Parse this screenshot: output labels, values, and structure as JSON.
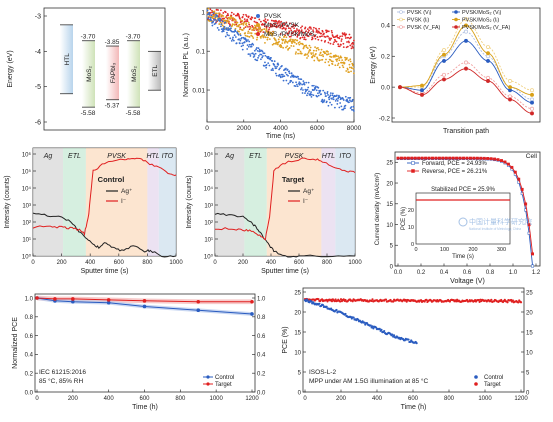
{
  "chart_data": [
    {
      "type": "diagram",
      "panel": "energy-levels",
      "ylabel": "Energy (eV)",
      "ylim": [
        -6,
        -3
      ],
      "y_ticks": [
        -3,
        -4,
        -5,
        -6
      ],
      "bars": [
        {
          "label": "HTL",
          "top": null,
          "bottom": null,
          "color": "#b8d4ec"
        },
        {
          "label": "MoS2",
          "top": -3.7,
          "bottom": -5.58,
          "color": "#cfe2b8"
        },
        {
          "label": "FAPbI3",
          "top": -3.85,
          "bottom": -5.37,
          "color": "#f3b8b8"
        },
        {
          "label": "MoS2",
          "top": -3.7,
          "bottom": -5.58,
          "color": "#cfe2b8"
        },
        {
          "label": "ETL",
          "top": null,
          "bottom": null,
          "color": "#b8b8b8"
        }
      ],
      "value_labels": [
        "-3.70",
        "-3.85",
        "-3.70",
        "-5.58",
        "-5.37",
        "-5.58"
      ]
    },
    {
      "type": "scatter",
      "panel": "pl-decay",
      "xlabel": "Time (ns)",
      "ylabel": "Normalized PL (a.u.)",
      "y_scale": "log",
      "xlim": [
        0,
        8000
      ],
      "x_ticks": [
        "0",
        "2000",
        "4000",
        "6000",
        "8000"
      ],
      "y_ticks": [
        "0.01",
        "0.1",
        "1"
      ],
      "series": [
        {
          "name": "PVSK",
          "color": "#3a6fd0",
          "tau": 1150
        },
        {
          "name": "MoS₂/PVSK",
          "color": "#e0a020",
          "tau": 2500
        },
        {
          "name": "MoS₂/PVSK/MoS₂",
          "color": "#e02828",
          "tau": 4900
        }
      ]
    },
    {
      "type": "line",
      "panel": "transition-path",
      "xlabel": "Transition path",
      "ylabel": "Energy (eV)",
      "ylim": [
        -0.2,
        0.5
      ],
      "y_ticks": [
        "-0.2",
        "0.0",
        "0.2",
        "0.4"
      ],
      "series": [
        {
          "name": "PVSK (Vᵢ)",
          "color": "#b0c0e0",
          "values": [
            0,
            -0.02,
            0.2,
            0.36,
            0.2,
            0.0,
            -0.08
          ]
        },
        {
          "name": "PVSK (Iᵢ)",
          "color": "#f0d080",
          "values": [
            0,
            0.0,
            0.24,
            0.44,
            0.26,
            0.04,
            -0.02
          ]
        },
        {
          "name": "PVSK (V_FA)",
          "color": "#f0a0a0",
          "values": [
            0,
            -0.04,
            0.08,
            0.16,
            0.06,
            -0.06,
            -0.14
          ]
        },
        {
          "name": "PVSK/MoS₂ (Vᵢ)",
          "color": "#2a5cc0",
          "values": [
            0,
            -0.02,
            0.17,
            0.3,
            0.17,
            -0.02,
            -0.1
          ]
        },
        {
          "name": "PVSK/MoS₂ (Iᵢ)",
          "color": "#d8a018",
          "values": [
            0,
            0.01,
            0.21,
            0.4,
            0.22,
            0.0,
            -0.05
          ]
        },
        {
          "name": "PVSK/MoS₂ (V_FA)",
          "color": "#d02828",
          "values": [
            0,
            -0.05,
            0.05,
            0.12,
            0.04,
            -0.08,
            -0.17
          ]
        }
      ]
    },
    {
      "type": "line",
      "panel": "tof-sims-control",
      "title": "Control",
      "xlabel": "Sputter time (s)",
      "ylabel": "Intensity (counts)",
      "y_scale": "log",
      "xlim": [
        0,
        1000
      ],
      "x_ticks": [
        "0",
        "200",
        "400",
        "600",
        "800",
        "1000"
      ],
      "y_ticks": [
        "10⁰",
        "10¹",
        "10²",
        "10³",
        "10⁴",
        "10⁵",
        "10⁶"
      ],
      "regions": [
        {
          "label": "Ag",
          "from": 0,
          "to": 210,
          "color": "#d8d8d8"
        },
        {
          "label": "ETL",
          "from": 210,
          "to": 370,
          "color": "#c8ead6"
        },
        {
          "label": "PVSK",
          "from": 370,
          "to": 800,
          "color": "#fbdcc0"
        },
        {
          "label": "HTL",
          "from": 800,
          "to": 880,
          "color": "#e6d8ee"
        },
        {
          "label": "ITO",
          "from": 880,
          "to": 1000,
          "color": "#cfe0ee"
        }
      ],
      "series": [
        {
          "name": "Ag⁺",
          "color": "#222222",
          "points": [
            [
              0,
              300
            ],
            [
              100,
              250
            ],
            [
              200,
              200
            ],
            [
              280,
              80
            ],
            [
              320,
              30
            ],
            [
              380,
              10
            ],
            [
              420,
              5
            ],
            [
              460,
              3
            ],
            [
              500,
              6
            ],
            [
              560,
              3
            ],
            [
              620,
              2
            ],
            [
              700,
              4
            ],
            [
              780,
              2
            ],
            [
              820,
              2
            ],
            [
              900,
              1
            ],
            [
              1000,
              1
            ]
          ]
        },
        {
          "name": "I⁻",
          "color": "#e02020",
          "points": [
            [
              0,
              50
            ],
            [
              120,
              55
            ],
            [
              200,
              50
            ],
            [
              260,
              45
            ],
            [
              300,
              40
            ],
            [
              340,
              30
            ],
            [
              360,
              20
            ],
            [
              390,
              300
            ],
            [
              420,
              100000
            ],
            [
              500,
              300000
            ],
            [
              640,
              500000
            ],
            [
              700,
              600000
            ],
            [
              760,
              500000
            ],
            [
              800,
              300000
            ],
            [
              880,
              150000
            ],
            [
              960,
              70000
            ],
            [
              1000,
              60000
            ]
          ]
        }
      ]
    },
    {
      "type": "line",
      "panel": "tof-sims-target",
      "title": "Target",
      "xlabel": "Sputter time (s)",
      "ylabel": "Intensity (counts)",
      "y_scale": "log",
      "xlim": [
        0,
        1000
      ],
      "x_ticks": [
        "0",
        "200",
        "400",
        "600",
        "800",
        "1000"
      ],
      "y_ticks": [
        "10⁰",
        "10¹",
        "10²",
        "10³",
        "10⁴",
        "10⁵",
        "10⁶"
      ],
      "regions": [
        {
          "label": "Ag",
          "from": 0,
          "to": 210,
          "color": "#d8d8d8"
        },
        {
          "label": "ETL",
          "from": 210,
          "to": 370,
          "color": "#c8ead6"
        },
        {
          "label": "PVSK",
          "from": 370,
          "to": 760,
          "color": "#fbdcc0"
        },
        {
          "label": "HTL",
          "from": 760,
          "to": 860,
          "color": "#e6d8ee"
        },
        {
          "label": "ITO",
          "from": 860,
          "to": 1000,
          "color": "#cfe0ee"
        }
      ],
      "series": [
        {
          "name": "Ag⁺",
          "color": "#222222",
          "points": [
            [
              0,
              300
            ],
            [
              100,
              250
            ],
            [
              200,
              200
            ],
            [
              260,
              100
            ],
            [
              300,
              40
            ],
            [
              340,
              15
            ],
            [
              380,
              5
            ],
            [
              420,
              2
            ],
            [
              500,
              1
            ],
            [
              600,
              1
            ],
            [
              800,
              1
            ],
            [
              1000,
              1
            ]
          ]
        },
        {
          "name": "I⁻",
          "color": "#e02020",
          "points": [
            [
              0,
              40
            ],
            [
              120,
              40
            ],
            [
              200,
              35
            ],
            [
              260,
              30
            ],
            [
              320,
              15
            ],
            [
              360,
              10
            ],
            [
              390,
              200
            ],
            [
              420,
              100000
            ],
            [
              500,
              300000
            ],
            [
              620,
              500000
            ],
            [
              720,
              500000
            ],
            [
              780,
              300000
            ],
            [
              860,
              150000
            ],
            [
              940,
              100000
            ],
            [
              1000,
              80000
            ]
          ]
        }
      ]
    },
    {
      "type": "line",
      "panel": "jv-curve",
      "xlabel": "Voltage (V)",
      "ylabel": "Current density (mA/cm²)",
      "xlim": [
        0,
        1.2
      ],
      "ylim": [
        0,
        25
      ],
      "x_ticks": [
        "0.0",
        "0.2",
        "0.4",
        "0.6",
        "0.8",
        "1.0",
        "1.2"
      ],
      "y_ticks": [
        "0",
        "5",
        "10",
        "15",
        "20",
        "25"
      ],
      "corner_label": "Cell",
      "series": [
        {
          "name": "Forward, PCE = 24.93%",
          "color": "#2a5cc0",
          "jsc": 25.9,
          "voc": 1.17
        },
        {
          "name": "Reverse, PCE = 26.21%",
          "color": "#e02020",
          "jsc": 26.0,
          "voc": 1.18
        }
      ],
      "inset": {
        "title": "Stabilized PCE = 25.9%",
        "xlabel": "Time (s)",
        "ylabel": "PCE (%)",
        "x_ticks": [
          "0",
          "100",
          "200",
          "300"
        ],
        "y_ticks": [
          "0",
          "10",
          "20"
        ],
        "value": 25.9,
        "watermark": "中国计量科学研究院",
        "watermark_en": "National Institute of Metrology, China"
      }
    },
    {
      "type": "line",
      "panel": "stability-iec",
      "xlabel": "Time (h)",
      "ylabel": "Normalized PCE",
      "xlim": [
        0,
        1200
      ],
      "ylim": [
        0,
        1.0
      ],
      "x_ticks": [
        "0",
        "200",
        "400",
        "600",
        "800",
        "1000",
        "1200"
      ],
      "y_ticks": [
        "0.0",
        "0.2",
        "0.4",
        "0.6",
        "0.8",
        "1.0"
      ],
      "annotation_line1": "IEC 61215:2016",
      "annotation_line2": "85 °C, 85% RH",
      "series": [
        {
          "name": "Control",
          "color": "#2a5cc0",
          "x": [
            0,
            100,
            200,
            400,
            600,
            900,
            1200
          ],
          "y": [
            1.0,
            0.97,
            0.96,
            0.95,
            0.91,
            0.87,
            0.83
          ]
        },
        {
          "name": "Target",
          "color": "#e02020",
          "x": [
            0,
            100,
            200,
            400,
            600,
            900,
            1200
          ],
          "y": [
            1.0,
            0.99,
            0.99,
            0.98,
            0.97,
            0.96,
            0.96
          ]
        }
      ]
    },
    {
      "type": "scatter",
      "panel": "stability-isos",
      "xlabel": "Time (h)",
      "ylabel": "PCE (%)",
      "xlim": [
        0,
        1200
      ],
      "ylim": [
        0,
        25
      ],
      "x_ticks": [
        "0",
        "200",
        "400",
        "600",
        "800",
        "1000",
        "1200"
      ],
      "y_ticks": [
        "0",
        "5",
        "10",
        "15",
        "20",
        "25"
      ],
      "annotation_line1": "ISOS-L-2",
      "annotation_line2": "MPP under AM 1.5G illumination at 85 °C",
      "series": [
        {
          "name": "Control",
          "color": "#2a5cc0",
          "x": [
            0,
            100,
            200,
            300,
            400,
            500,
            620
          ],
          "y": [
            23.0,
            21.5,
            19.8,
            17.8,
            15.8,
            13.8,
            12.3
          ]
        },
        {
          "name": "Target",
          "color": "#e02020",
          "x": [
            0,
            200,
            400,
            600,
            800,
            1000,
            1200
          ],
          "y": [
            23.0,
            22.9,
            22.9,
            22.8,
            22.8,
            22.8,
            22.7
          ]
        }
      ]
    }
  ]
}
